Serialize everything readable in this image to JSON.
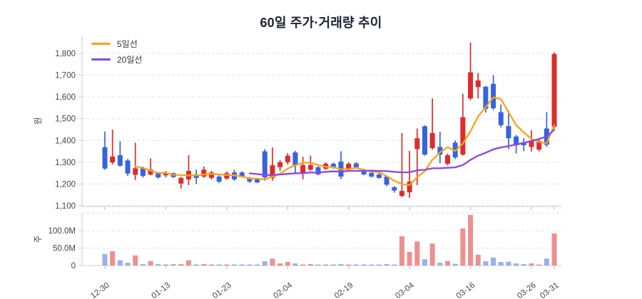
{
  "chart_title": "60일 주가·거래량 추이",
  "chart_data": {
    "type": "candlestick+volume",
    "title": "60일 주가·거래량 추이",
    "price_axis": {
      "label": "원",
      "ticks": [
        {
          "v": 1800,
          "label": "1,800"
        },
        {
          "v": 1700,
          "label": "1,700"
        },
        {
          "v": 1600,
          "label": "1,600"
        },
        {
          "v": 1500,
          "label": "1,500"
        },
        {
          "v": 1400,
          "label": "1,400"
        },
        {
          "v": 1300,
          "label": "1,300"
        },
        {
          "v": 1200,
          "label": "1,200"
        },
        {
          "v": 1100,
          "label": "1,100"
        }
      ],
      "grid": true
    },
    "volume_axis": {
      "label": "주",
      "unit": "M",
      "ticks": [
        {
          "v": 150,
          "label": ""
        },
        {
          "v": 100,
          "label": "100.0M"
        },
        {
          "v": 50,
          "label": "50.0M"
        },
        {
          "v": 0,
          "label": "0"
        }
      ],
      "grid": true
    },
    "x_ticks": [
      {
        "index": 0,
        "label": "12-30"
      },
      {
        "index": 8,
        "label": "01-13"
      },
      {
        "index": 16,
        "label": "01-23"
      },
      {
        "index": 24,
        "label": "02-04"
      },
      {
        "index": 32,
        "label": "02-19"
      },
      {
        "index": 40,
        "label": "03-04"
      },
      {
        "index": 48,
        "label": "03-16"
      },
      {
        "index": 56,
        "label": "03-26"
      },
      {
        "index": 59,
        "label": "03-31"
      }
    ],
    "legend": [
      {
        "label": "5일선",
        "period": 5,
        "color": "#FFA116"
      },
      {
        "label": "20일선",
        "period": 20,
        "color": "#8A46E6"
      }
    ],
    "colors": {
      "up": "#DC2D2D",
      "down": "#3763E0",
      "volume_up": "#EC9090",
      "volume_down": "#98B1EA",
      "ma5": "#FFA116",
      "ma20": "#8A46E6",
      "grid": "#DFE3E9",
      "axis": "#C7CCD6",
      "tick_text": "#3D4656",
      "title_text": "#1B2333",
      "background": "#FFFFFF"
    },
    "candle_columns": [
      "open",
      "high",
      "low",
      "close",
      "volume_millions"
    ],
    "candles": [
      [
        1369,
        1441,
        1265,
        1271,
        33
      ],
      [
        1299,
        1450,
        1290,
        1326,
        41
      ],
      [
        1332,
        1397,
        1280,
        1284,
        15
      ],
      [
        1308,
        1315,
        1237,
        1248,
        8
      ],
      [
        1242,
        1390,
        1218,
        1272,
        29
      ],
      [
        1272,
        1280,
        1230,
        1237,
        4
      ],
      [
        1243,
        1318,
        1240,
        1266,
        13
      ],
      [
        1250,
        1255,
        1225,
        1230,
        4
      ],
      [
        1240,
        1260,
        1230,
        1248,
        3
      ],
      [
        1250,
        1252,
        1228,
        1232,
        4
      ],
      [
        1202,
        1232,
        1179,
        1228,
        4
      ],
      [
        1221,
        1332,
        1195,
        1260,
        15
      ],
      [
        1244,
        1266,
        1200,
        1228,
        2
      ],
      [
        1234,
        1280,
        1228,
        1266,
        4
      ],
      [
        1228,
        1260,
        1220,
        1253,
        3
      ],
      [
        1234,
        1240,
        1205,
        1211,
        3
      ],
      [
        1225,
        1258,
        1220,
        1250,
        3
      ],
      [
        1253,
        1266,
        1215,
        1221,
        3
      ],
      [
        1253,
        1258,
        1230,
        1234,
        2
      ],
      [
        1228,
        1232,
        1205,
        1211,
        2
      ],
      [
        1221,
        1225,
        1205,
        1207,
        2
      ],
      [
        1350,
        1360,
        1215,
        1230,
        12
      ],
      [
        1228,
        1368,
        1215,
        1286,
        20
      ],
      [
        1277,
        1310,
        1260,
        1300,
        6
      ],
      [
        1300,
        1342,
        1290,
        1330,
        10
      ],
      [
        1345,
        1352,
        1245,
        1285,
        6
      ],
      [
        1251,
        1325,
        1222,
        1287,
        3
      ],
      [
        1266,
        1330,
        1260,
        1287,
        4
      ],
      [
        1277,
        1282,
        1240,
        1244,
        3
      ],
      [
        1270,
        1300,
        1265,
        1293,
        3
      ],
      [
        1293,
        1298,
        1270,
        1277,
        2
      ],
      [
        1303,
        1350,
        1222,
        1234,
        4
      ],
      [
        1266,
        1300,
        1260,
        1293,
        3
      ],
      [
        1295,
        1300,
        1270,
        1277,
        2
      ],
      [
        1260,
        1270,
        1240,
        1244,
        2
      ],
      [
        1251,
        1256,
        1230,
        1234,
        2
      ],
      [
        1244,
        1250,
        1224,
        1228,
        3
      ],
      [
        1234,
        1240,
        1190,
        1197,
        4
      ],
      [
        1185,
        1190,
        1160,
        1170,
        3
      ],
      [
        1145,
        1434,
        1140,
        1168,
        84
      ],
      [
        1162,
        1352,
        1136,
        1211,
        39
      ],
      [
        1360,
        1455,
        1195,
        1410,
        69
      ],
      [
        1465,
        1470,
        1330,
        1335,
        18
      ],
      [
        1365,
        1593,
        1358,
        1434,
        63
      ],
      [
        1370,
        1440,
        1295,
        1335,
        8
      ],
      [
        1293,
        1340,
        1285,
        1332,
        13
      ],
      [
        1390,
        1400,
        1315,
        1322,
        5
      ],
      [
        1335,
        1615,
        1330,
        1507,
        106
      ],
      [
        1593,
        1850,
        1585,
        1713,
        145
      ],
      [
        1645,
        1710,
        1593,
        1676,
        31
      ],
      [
        1647,
        1650,
        1528,
        1545,
        12
      ],
      [
        1660,
        1700,
        1540,
        1548,
        23
      ],
      [
        1530,
        1565,
        1460,
        1470,
        10
      ],
      [
        1466,
        1538,
        1360,
        1410,
        11
      ],
      [
        1418,
        1425,
        1340,
        1378,
        6
      ],
      [
        1392,
        1410,
        1350,
        1378,
        4
      ],
      [
        1370,
        1447,
        1349,
        1400,
        6
      ],
      [
        1358,
        1405,
        1350,
        1398,
        2
      ],
      [
        1455,
        1530,
        1370,
        1380,
        20
      ],
      [
        1463,
        1805,
        1455,
        1797,
        92
      ]
    ]
  }
}
